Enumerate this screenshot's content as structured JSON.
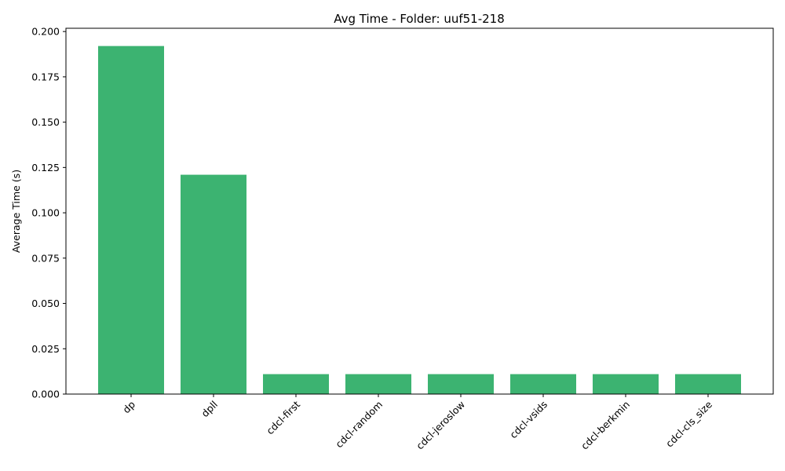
{
  "chart_data": {
    "type": "bar",
    "title": "Avg Time - Folder: uuf51-218",
    "xlabel": "",
    "ylabel": "Average Time (s)",
    "categories": [
      "dp",
      "dpll",
      "cdcl-first",
      "cdcl-random",
      "cdcl-jeroslow",
      "cdcl-vsids",
      "cdcl-berkmin",
      "cdcl-cls_size"
    ],
    "values": [
      0.192,
      0.121,
      0.011,
      0.011,
      0.011,
      0.011,
      0.011,
      0.011
    ],
    "ylim": [
      0,
      0.2018
    ],
    "yticks": [
      0.0,
      0.025,
      0.05,
      0.075,
      0.1,
      0.125,
      0.15,
      0.175,
      0.2
    ],
    "ytick_labels": [
      "0.000",
      "0.025",
      "0.050",
      "0.075",
      "0.100",
      "0.125",
      "0.150",
      "0.175",
      "0.200"
    ],
    "bar_color": "#3cb371",
    "grid": false,
    "xtick_rotation_deg": 45
  }
}
